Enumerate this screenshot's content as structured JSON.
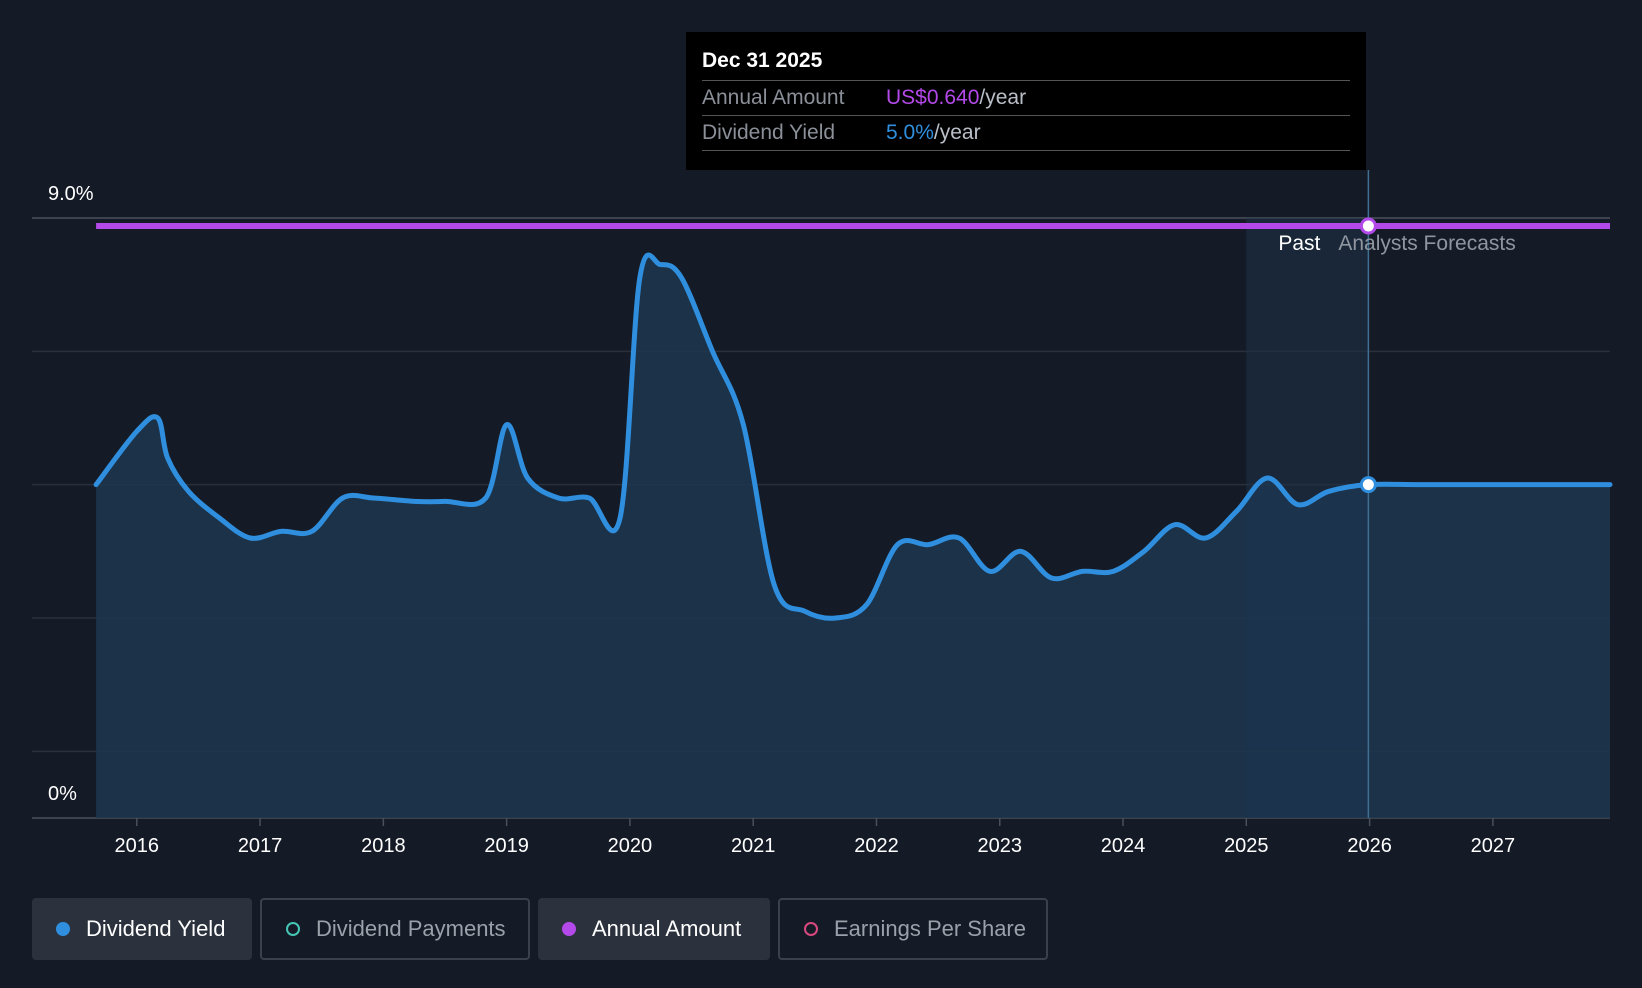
{
  "chart_data": {
    "type": "line",
    "title": "Dividend Yield",
    "ylim": [
      0,
      9.0
    ],
    "y_tick_labels": {
      "top": "9.0%",
      "bottom": "0%"
    },
    "x_tick_labels": [
      "2016",
      "2017",
      "2018",
      "2019",
      "2020",
      "2021",
      "2022",
      "2023",
      "2024",
      "2025",
      "2026",
      "2027"
    ],
    "x_ticks": [
      2016,
      2017,
      2018,
      2019,
      2020,
      2021,
      2022,
      2023,
      2024,
      2025,
      2026,
      2027
    ],
    "xlim": [
      2015.15,
      2027.95
    ],
    "region_labels": {
      "past": "Past",
      "forecast": "Analysts Forecasts"
    },
    "past_end_x": 2025.99,
    "series": [
      {
        "name": "Dividend Yield",
        "color": "#2f8fde",
        "x": [
          2015.67,
          2016.0,
          2016.17,
          2016.25,
          2016.42,
          2016.67,
          2016.92,
          2017.17,
          2017.42,
          2017.67,
          2017.92,
          2018.25,
          2018.5,
          2018.83,
          2019.0,
          2019.17,
          2019.42,
          2019.67,
          2019.92,
          2020.08,
          2020.25,
          2020.42,
          2020.67,
          2020.92,
          2021.17,
          2021.42,
          2021.67,
          2021.92,
          2022.17,
          2022.42,
          2022.67,
          2022.92,
          2023.17,
          2023.42,
          2023.67,
          2023.92,
          2024.17,
          2024.42,
          2024.67,
          2024.92,
          2025.17,
          2025.42,
          2025.67,
          2025.99,
          2026.5,
          2027.95
        ],
        "values": [
          5.0,
          5.8,
          6.0,
          5.4,
          4.9,
          4.5,
          4.2,
          4.3,
          4.3,
          4.8,
          4.8,
          4.75,
          4.75,
          4.8,
          5.9,
          5.1,
          4.8,
          4.8,
          4.5,
          8.1,
          8.3,
          8.1,
          7.0,
          5.9,
          3.5,
          3.1,
          3.0,
          3.2,
          4.1,
          4.1,
          4.2,
          3.7,
          4.0,
          3.6,
          3.7,
          3.7,
          4.0,
          4.4,
          4.2,
          4.6,
          5.1,
          4.7,
          4.9,
          5.0,
          5.0,
          5.0
        ]
      },
      {
        "name": "Annual Amount",
        "color": "#b349e8",
        "x": [
          2015.67,
          2025.99,
          2027.95
        ],
        "values": [
          8.88,
          8.88,
          8.88
        ]
      }
    ],
    "highlight_point": {
      "x": 2025.99
    }
  },
  "tooltip": {
    "date": "Dec 31 2025",
    "rows": [
      {
        "label": "Annual Amount",
        "value": "US$0.640",
        "unit": "/year",
        "color": "#b349e8"
      },
      {
        "label": "Dividend Yield",
        "value": "5.0%",
        "unit": "/year",
        "color": "#2f8fde"
      }
    ]
  },
  "legend": {
    "items": [
      {
        "label": "Dividend Yield",
        "color": "#2f8fde"
      },
      {
        "label": "Dividend Payments",
        "color": "#45c7b6"
      },
      {
        "label": "Annual Amount",
        "color": "#b349e8"
      },
      {
        "label": "Earnings Per Share",
        "color": "#d9487f"
      }
    ]
  }
}
